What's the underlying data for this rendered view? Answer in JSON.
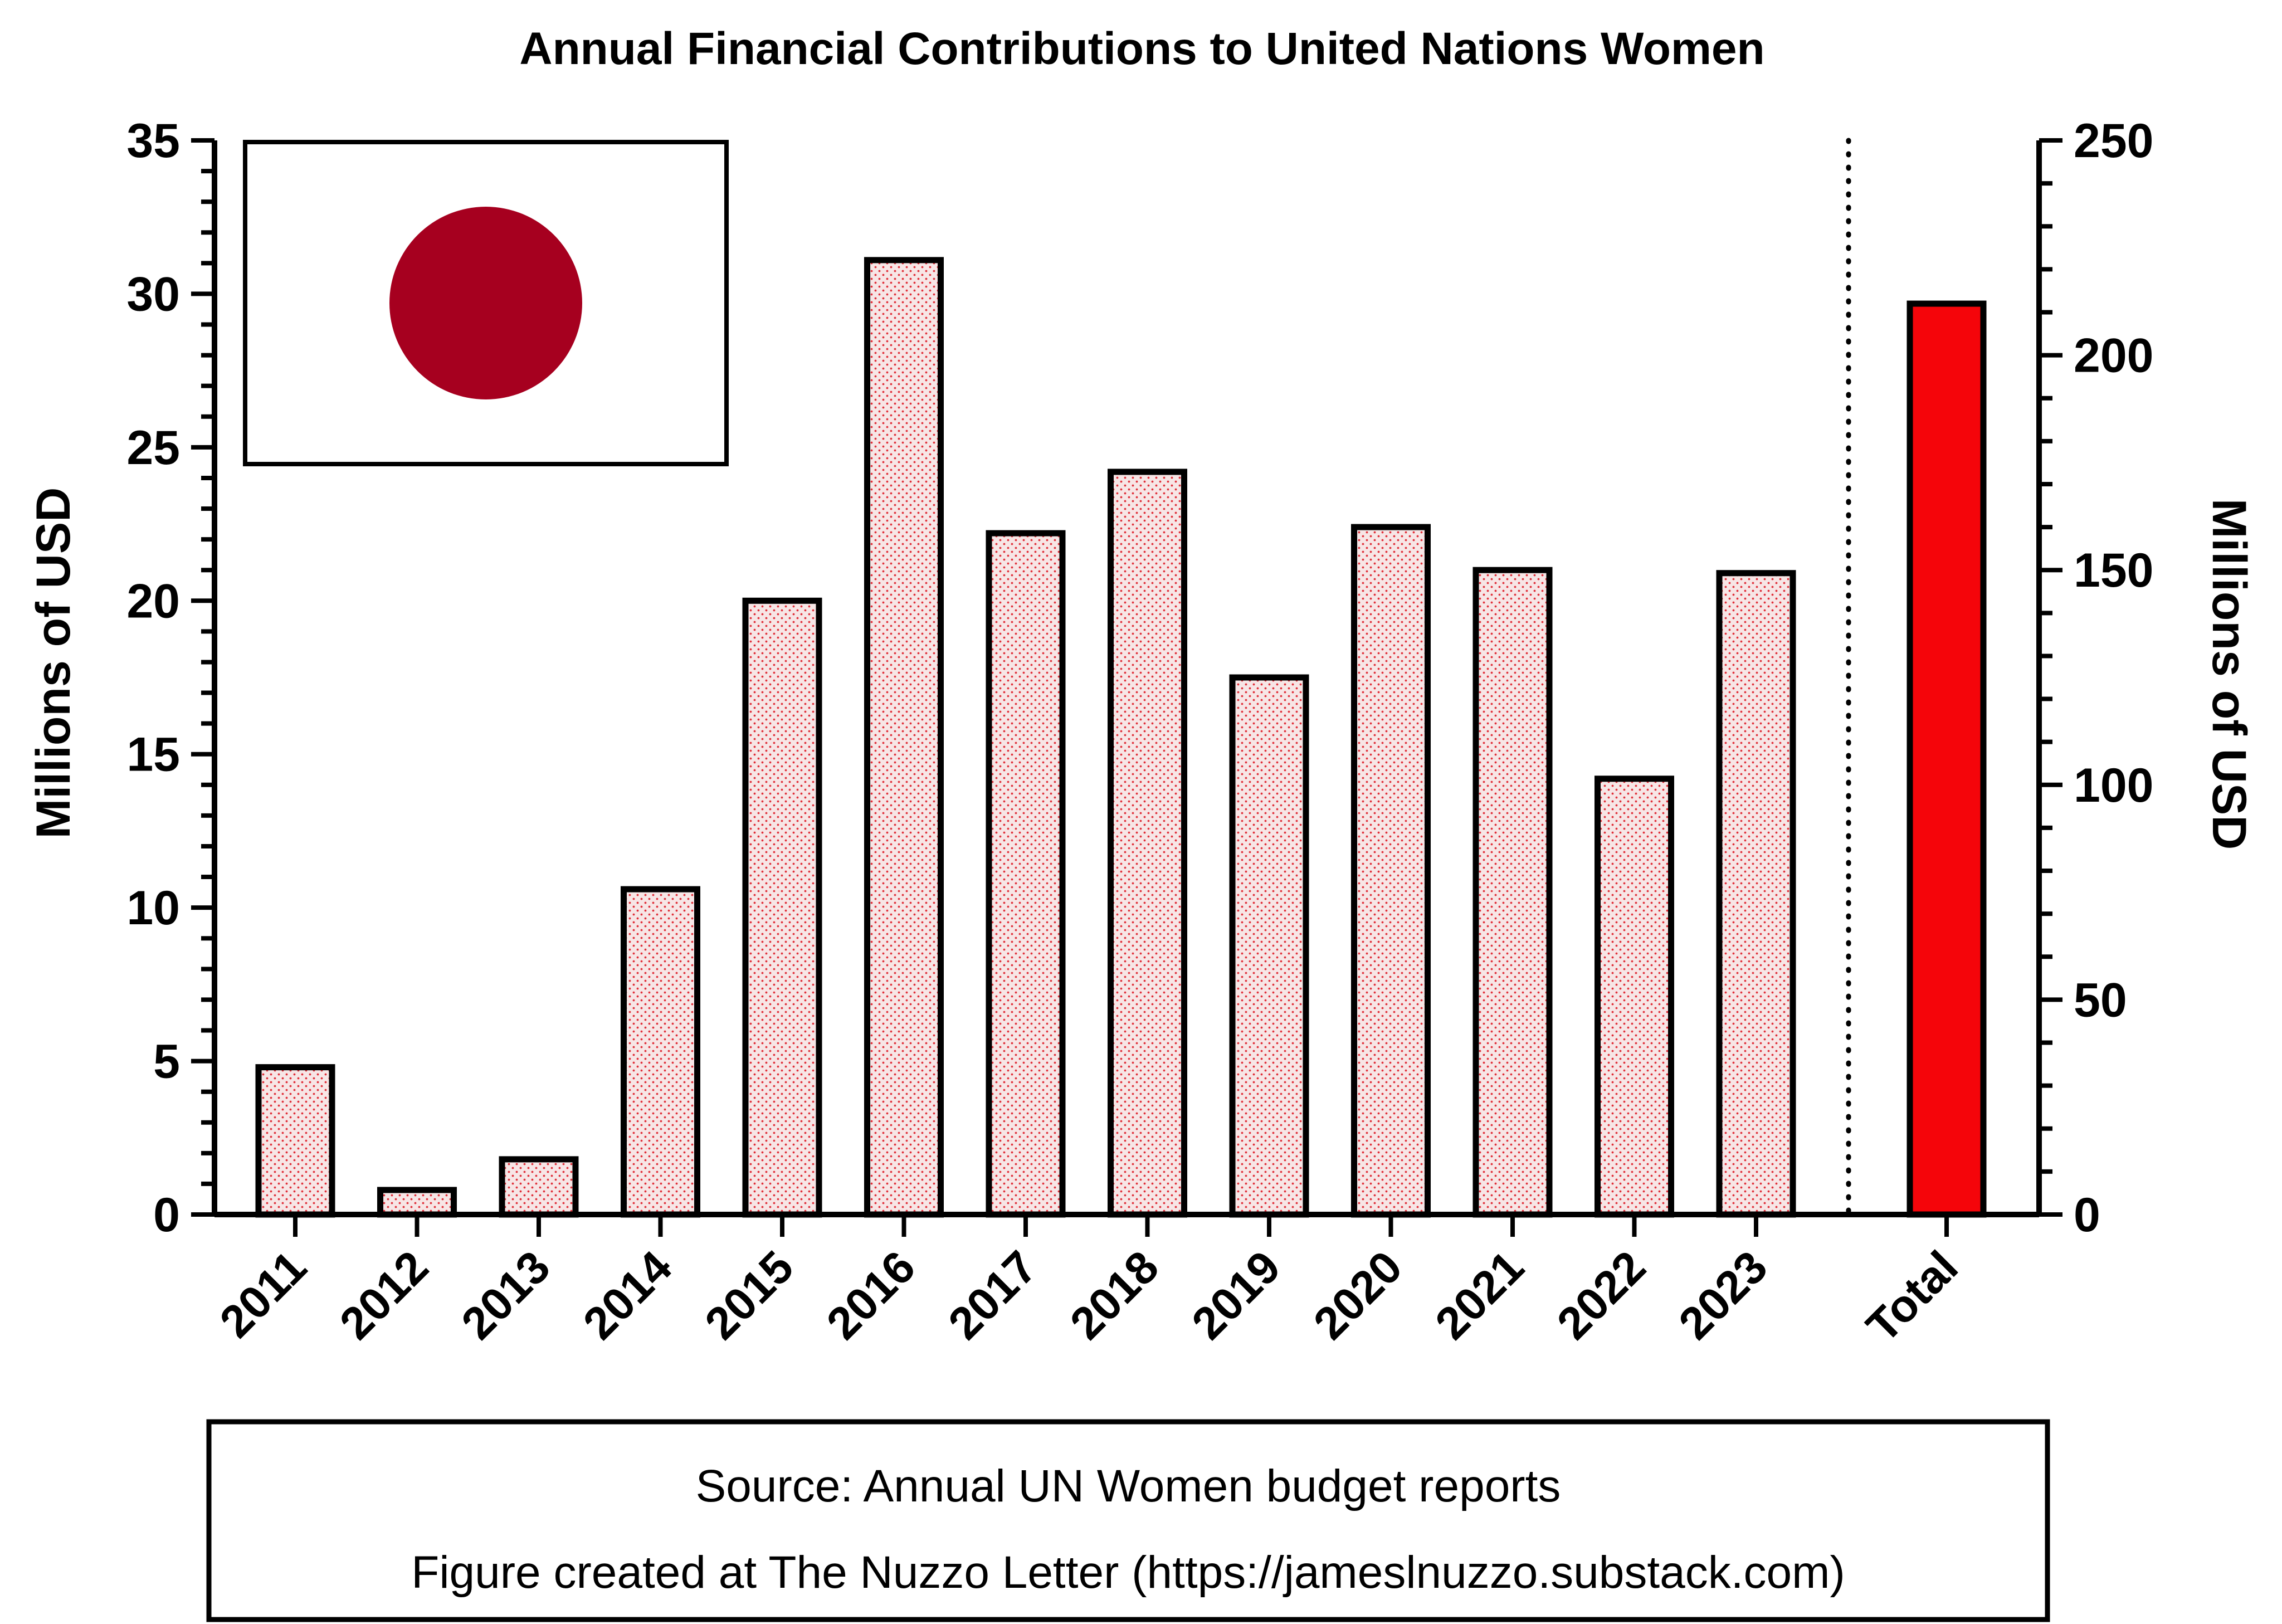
{
  "chart_data": {
    "type": "bar",
    "title": "Annual Financial Contributions to United Nations Women",
    "ylabel": "Millions of USD",
    "y2label": "Millions of USD",
    "ylim": [
      0,
      35
    ],
    "yticks": [
      "0",
      "5",
      "10",
      "15",
      "20",
      "25",
      "30",
      "35"
    ],
    "y2lim": [
      0,
      250
    ],
    "y2ticks": [
      "0",
      "50",
      "100",
      "150",
      "200",
      "250"
    ],
    "categories": [
      "2011",
      "2012",
      "2013",
      "2014",
      "2015",
      "2016",
      "2017",
      "2018",
      "2019",
      "2020",
      "2021",
      "2022",
      "2023"
    ],
    "values": [
      4.8,
      0.8,
      1.8,
      10.6,
      20.0,
      31.1,
      22.2,
      24.2,
      17.5,
      22.4,
      21.0,
      14.2,
      20.9
    ],
    "total": {
      "label": "Total",
      "value": 212,
      "axis": "right"
    },
    "grid": false,
    "legend": "none",
    "annual_bar_color": "#f7e6e6",
    "annual_bar_dot_color": "#e0303a",
    "total_bar_color": "#f5050a",
    "flag": {
      "name": "japan-flag",
      "disc_color": "#a6001f",
      "field_color": "#ffffff"
    }
  },
  "footer": {
    "source": "Source: Annual UN Women budget reports",
    "credit": "Figure created at The Nuzzo Letter (https://jameslnuzzo.substack.com)"
  }
}
